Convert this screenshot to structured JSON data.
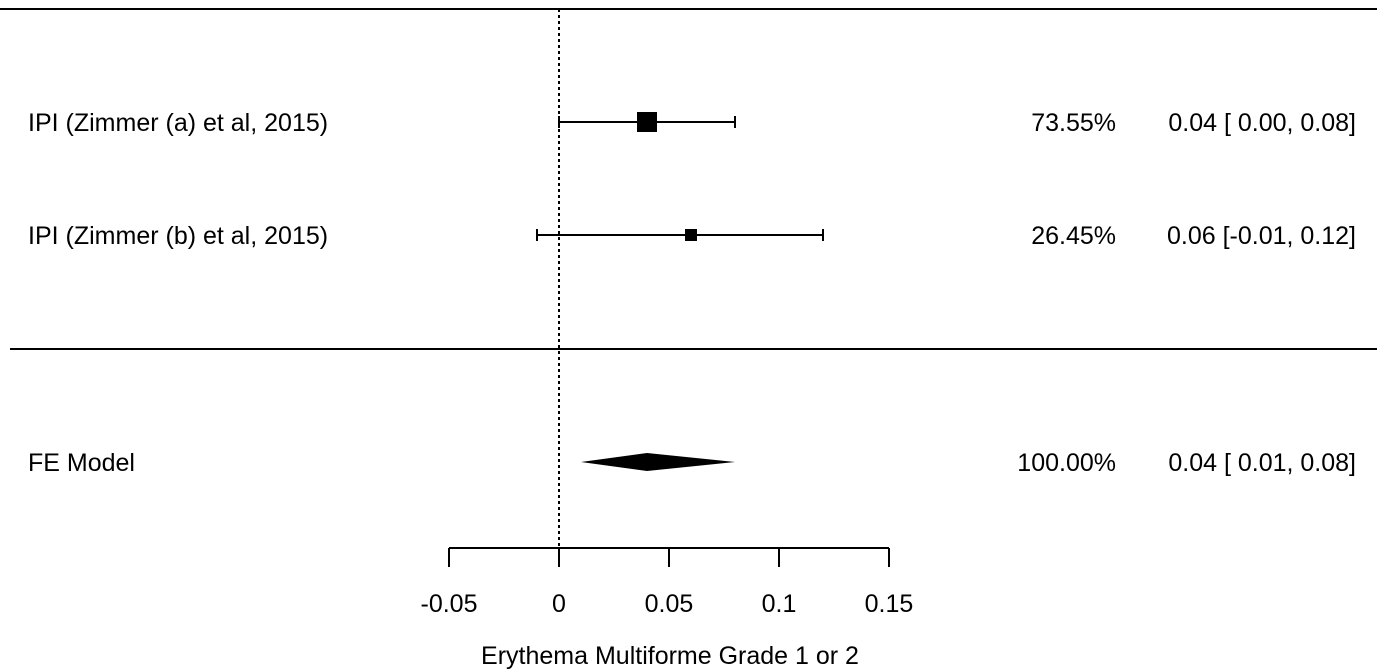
{
  "chart_data": {
    "type": "forest",
    "xlabel": "Erythema Multiforme Grade 1 or 2",
    "xlim": [
      -0.05,
      0.15
    ],
    "ticks": [
      -0.05,
      0,
      0.05,
      0.1,
      0.15
    ],
    "tick_labels": [
      "-0.05",
      "0",
      "0.05",
      "0.1",
      "0.15"
    ],
    "reference_line": 0,
    "studies": [
      {
        "label": "IPI (Zimmer (a) et  al, 2015)",
        "estimate": 0.04,
        "ci": [
          0.0,
          0.08
        ],
        "weight": 73.55,
        "weight_text": "73.55%",
        "estimate_text": "0.04 [ 0.00, 0.08]"
      },
      {
        "label": "IPI (Zimmer (b) et al, 2015)",
        "estimate": 0.06,
        "ci": [
          -0.01,
          0.12
        ],
        "weight": 26.45,
        "weight_text": "26.45%",
        "estimate_text": "0.06 [-0.01, 0.12]"
      }
    ],
    "summary": {
      "label": "FE Model",
      "estimate": 0.04,
      "ci": [
        0.01,
        0.08
      ],
      "weight_text": "100.00%",
      "estimate_text": "0.04 [ 0.01, 0.08]"
    }
  }
}
